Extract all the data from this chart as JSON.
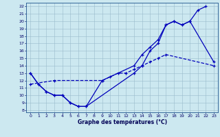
{
  "background_color": "#cce8f0",
  "grid_color": "#99bbcc",
  "line_color": "#0000bb",
  "xlabel": "Graphe des températures (°C)",
  "xlim_min": -0.5,
  "xlim_max": 23.5,
  "ylim_min": 7.7,
  "ylim_max": 22.5,
  "xticks": [
    0,
    1,
    2,
    3,
    4,
    5,
    6,
    7,
    8,
    9,
    10,
    11,
    12,
    13,
    14,
    15,
    16,
    17,
    18,
    19,
    20,
    21,
    22,
    23
  ],
  "yticks": [
    8,
    9,
    10,
    11,
    12,
    13,
    14,
    15,
    16,
    17,
    18,
    19,
    20,
    21,
    22
  ],
  "curve_high": {
    "x": [
      0,
      1,
      2,
      3,
      4,
      5,
      6,
      7,
      9,
      13,
      14,
      15,
      16,
      17,
      18,
      19,
      20,
      21,
      22
    ],
    "y": [
      13,
      11.5,
      10.5,
      10,
      10,
      9,
      8.5,
      8.5,
      12,
      14,
      15.5,
      16.5,
      17.5,
      19.5,
      20,
      19.5,
      20,
      21.5,
      22
    ]
  },
  "curve_mid": {
    "x": [
      0,
      1,
      2,
      3,
      4,
      5,
      6,
      7,
      13,
      14,
      15,
      16,
      17,
      18,
      19,
      20,
      23
    ],
    "y": [
      13,
      11.5,
      10.5,
      10,
      10,
      9,
      8.5,
      8.5,
      13,
      14,
      16,
      17,
      19.5,
      20,
      19.5,
      20,
      14.5
    ]
  },
  "curve_lin": {
    "x": [
      0,
      3,
      9,
      10,
      11,
      12,
      13,
      14,
      15,
      16,
      17,
      23
    ],
    "y": [
      11.5,
      12,
      12,
      12.5,
      13,
      13,
      13.5,
      14,
      14.5,
      15,
      15.5,
      14
    ]
  }
}
